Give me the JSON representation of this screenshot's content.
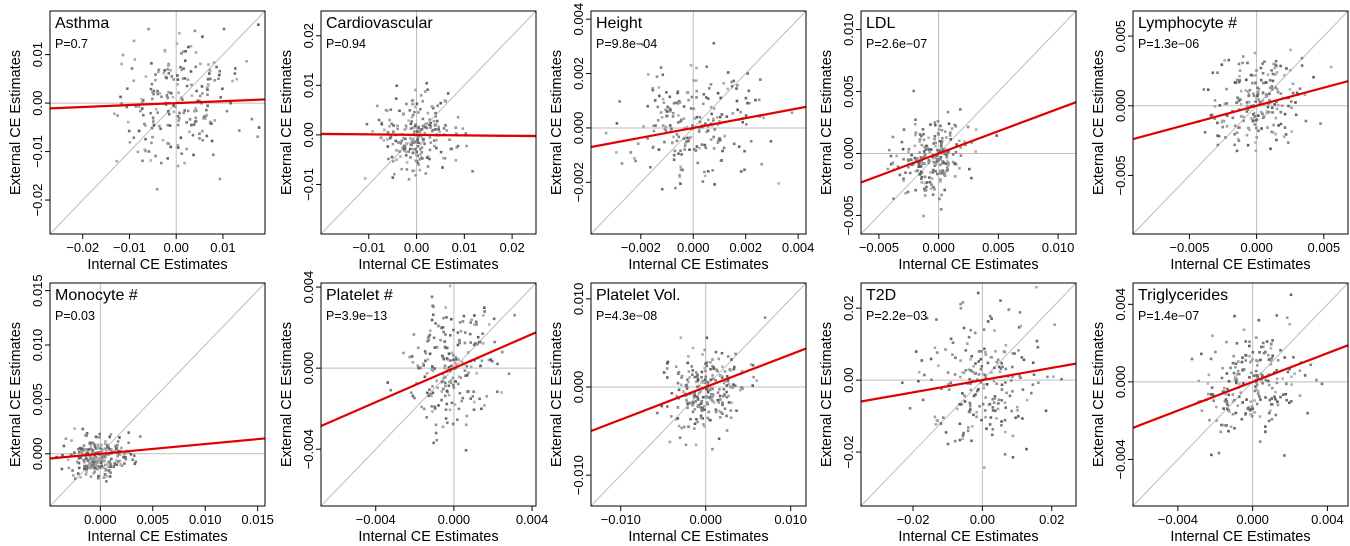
{
  "chart_data": [
    {
      "type": "scatter",
      "title": "Asthma",
      "annotation": "P=0.7",
      "xlabel": "Internal CE Estimates",
      "ylabel": "External CE Estimates",
      "xlim": [
        -0.027,
        0.019
      ],
      "ylim": [
        -0.027,
        0.019
      ],
      "xticks": [
        -0.02,
        -0.01,
        0.0,
        0.01
      ],
      "xtick_labels": [
        "−0.02",
        "−0.01",
        "0.00",
        "0.01"
      ],
      "yticks": [
        -0.02,
        -0.01,
        0.0,
        0.01
      ],
      "ytick_labels": [
        "−0.02",
        "−0.01",
        "0.00",
        "0.01"
      ],
      "fit_line": {
        "slope": 0.04,
        "intercept": 0.0
      },
      "scatter_spread": {
        "x_center": 0.0,
        "x_sd": 0.0065,
        "y_center": 0.0,
        "y_sd": 0.0065,
        "n": 220
      }
    },
    {
      "type": "scatter",
      "title": "Cardiovascular",
      "annotation": "P=0.94",
      "xlabel": "Internal CE Estimates",
      "ylabel": "External CE Estimates",
      "xlim": [
        -0.02,
        0.025
      ],
      "ylim": [
        -0.02,
        0.025
      ],
      "xticks": [
        -0.01,
        0.0,
        0.01,
        0.02
      ],
      "xtick_labels": [
        "−0.01",
        "0.00",
        "0.01",
        "0.02"
      ],
      "yticks": [
        -0.01,
        0.0,
        0.01,
        0.02
      ],
      "ytick_labels": [
        "−0.01",
        "0.00",
        "0.01",
        "0.02"
      ],
      "fit_line": {
        "slope": -0.01,
        "intercept": 0.0
      },
      "scatter_spread": {
        "x_center": 0.0,
        "x_sd": 0.004,
        "y_center": 0.0,
        "y_sd": 0.0035,
        "n": 220
      }
    },
    {
      "type": "scatter",
      "title": "Height",
      "annotation": "P=9.8e−04",
      "xlabel": "Internal CE Estimates",
      "ylabel": "External CE Estimates",
      "xlim": [
        -0.0039,
        0.0043
      ],
      "ylim": [
        -0.0039,
        0.0043
      ],
      "xticks": [
        -0.002,
        0.0,
        0.002,
        0.004
      ],
      "xtick_labels": [
        "−0.002",
        "0.000",
        "0.002",
        "0.004"
      ],
      "yticks": [
        -0.002,
        0.0,
        0.002,
        0.004
      ],
      "ytick_labels": [
        "−0.002",
        "0.000",
        "0.002",
        "0.004"
      ],
      "fit_line": {
        "slope": 0.18,
        "intercept": 0.0
      },
      "scatter_spread": {
        "x_center": 0.0,
        "x_sd": 0.0012,
        "y_center": 0.0002,
        "y_sd": 0.0011,
        "n": 220
      }
    },
    {
      "type": "scatter",
      "title": "LDL",
      "annotation": "P=2.6e−07",
      "xlabel": "Internal CE Estimates",
      "ylabel": "External CE Estimates",
      "xlim": [
        -0.0065,
        0.0115
      ],
      "ylim": [
        -0.0065,
        0.0115
      ],
      "xticks": [
        -0.005,
        0.0,
        0.005,
        0.01
      ],
      "xtick_labels": [
        "−0.005",
        "0.000",
        "0.005",
        "0.010"
      ],
      "yticks": [
        -0.005,
        0.0,
        0.005,
        0.01
      ],
      "ytick_labels": [
        "−0.005",
        "0.000",
        "0.005",
        "0.010"
      ],
      "fit_line": {
        "slope": 0.36,
        "intercept": 0.0
      },
      "scatter_spread": {
        "x_center": -0.0005,
        "x_sd": 0.0016,
        "y_center": -0.0003,
        "y_sd": 0.0016,
        "n": 220
      }
    },
    {
      "type": "scatter",
      "title": "Lymphocyte #",
      "annotation": "P=1.3e−06",
      "xlabel": "Internal CE Estimates",
      "ylabel": "External CE Estimates",
      "xlim": [
        -0.0092,
        0.0068
      ],
      "ylim": [
        -0.0092,
        0.0068
      ],
      "xticks": [
        -0.005,
        0.0,
        0.005
      ],
      "xtick_labels": [
        "−0.005",
        "0.000",
        "0.005"
      ],
      "yticks": [
        -0.005,
        0.0,
        0.005
      ],
      "ytick_labels": [
        "−0.005",
        "0.000",
        "0.005"
      ],
      "fit_line": {
        "slope": 0.26,
        "intercept": 0.0
      },
      "scatter_spread": {
        "x_center": 0.0,
        "x_sd": 0.0018,
        "y_center": 0.0003,
        "y_sd": 0.0016,
        "n": 220
      }
    },
    {
      "type": "scatter",
      "title": "Monocyte #",
      "annotation": "P=0.03",
      "xlabel": "Internal CE Estimates",
      "ylabel": "External CE Estimates",
      "xlim": [
        -0.0048,
        0.0157
      ],
      "ylim": [
        -0.0048,
        0.0157
      ],
      "xticks": [
        0.0,
        0.005,
        0.01,
        0.015
      ],
      "xtick_labels": [
        "0.000",
        "0.005",
        "0.010",
        "0.015"
      ],
      "yticks": [
        0.0,
        0.005,
        0.01,
        0.015
      ],
      "ytick_labels": [
        "0.000",
        "0.005",
        "0.010",
        "0.015"
      ],
      "fit_line": {
        "slope": 0.09,
        "intercept": 0.0
      },
      "scatter_spread": {
        "x_center": 0.0,
        "x_sd": 0.0014,
        "y_center": -0.0002,
        "y_sd": 0.0009,
        "n": 240
      }
    },
    {
      "type": "scatter",
      "title": "Platelet #",
      "annotation": "P=3.9e−13",
      "xlabel": "Internal CE Estimates",
      "ylabel": "External CE Estimates",
      "xlim": [
        -0.0068,
        0.0042
      ],
      "ylim": [
        -0.0068,
        0.0042
      ],
      "xticks": [
        -0.004,
        0.0,
        0.004
      ],
      "xtick_labels": [
        "−0.004",
        "0.000",
        "0.004"
      ],
      "yticks": [
        -0.004,
        0.0,
        0.004
      ],
      "ytick_labels": [
        "−0.004",
        "0.000",
        "0.004"
      ],
      "fit_line": {
        "slope": 0.42,
        "intercept": 0.0
      },
      "scatter_spread": {
        "x_center": 0.0,
        "x_sd": 0.0013,
        "y_center": 0.0,
        "y_sd": 0.0014,
        "n": 220
      }
    },
    {
      "type": "scatter",
      "title": "Platelet Vol.",
      "annotation": "P=4.3e−08",
      "xlabel": "Internal CE Estimates",
      "ylabel": "External CE Estimates",
      "xlim": [
        -0.0135,
        0.0118
      ],
      "ylim": [
        -0.0135,
        0.0118
      ],
      "xticks": [
        -0.01,
        0.0,
        0.01
      ],
      "xtick_labels": [
        "−0.010",
        "0.000",
        "0.010"
      ],
      "yticks": [
        -0.01,
        0.0,
        0.01
      ],
      "ytick_labels": [
        "−0.010",
        "0.000",
        "0.010"
      ],
      "fit_line": {
        "slope": 0.37,
        "intercept": 0.0
      },
      "scatter_spread": {
        "x_center": 0.0,
        "x_sd": 0.0022,
        "y_center": -0.0003,
        "y_sd": 0.0022,
        "n": 240
      }
    },
    {
      "type": "scatter",
      "title": "T2D",
      "annotation": "P=2.2e−03",
      "xlabel": "Internal CE Estimates",
      "ylabel": "External CE Estimates",
      "xlim": [
        -0.035,
        0.027
      ],
      "ylim": [
        -0.035,
        0.027
      ],
      "xticks": [
        -0.02,
        0.0,
        0.02
      ],
      "xtick_labels": [
        "−0.02",
        "0.00",
        "0.02"
      ],
      "yticks": [
        -0.02,
        0.0,
        0.02
      ],
      "ytick_labels": [
        "−0.02",
        "0.00",
        "0.02"
      ],
      "fit_line": {
        "slope": 0.17,
        "intercept": 0.0
      },
      "scatter_spread": {
        "x_center": 0.0,
        "x_sd": 0.009,
        "y_center": 0.0,
        "y_sd": 0.009,
        "n": 220
      }
    },
    {
      "type": "scatter",
      "title": "Triglycerides",
      "annotation": "P=1.4e−07",
      "xlabel": "Internal CE Estimates",
      "ylabel": "External CE Estimates",
      "xlim": [
        -0.0064,
        0.0051
      ],
      "ylim": [
        -0.0064,
        0.0051
      ],
      "xticks": [
        -0.004,
        0.0,
        0.004
      ],
      "xtick_labels": [
        "−0.004",
        "0.000",
        "0.004"
      ],
      "yticks": [
        -0.004,
        0.0,
        0.004
      ],
      "ytick_labels": [
        "−0.004",
        "0.000",
        "0.004"
      ],
      "fit_line": {
        "slope": 0.37,
        "intercept": 0.0
      },
      "scatter_spread": {
        "x_center": 0.0,
        "x_sd": 0.0014,
        "y_center": 0.0,
        "y_sd": 0.0014,
        "n": 220
      }
    }
  ],
  "colors": {
    "fit_line": "#e00000",
    "identity_line": "#bdbdbd",
    "zero_lines": "#bdbdbd",
    "points": "#7a7a7a",
    "frame": "#000000"
  }
}
